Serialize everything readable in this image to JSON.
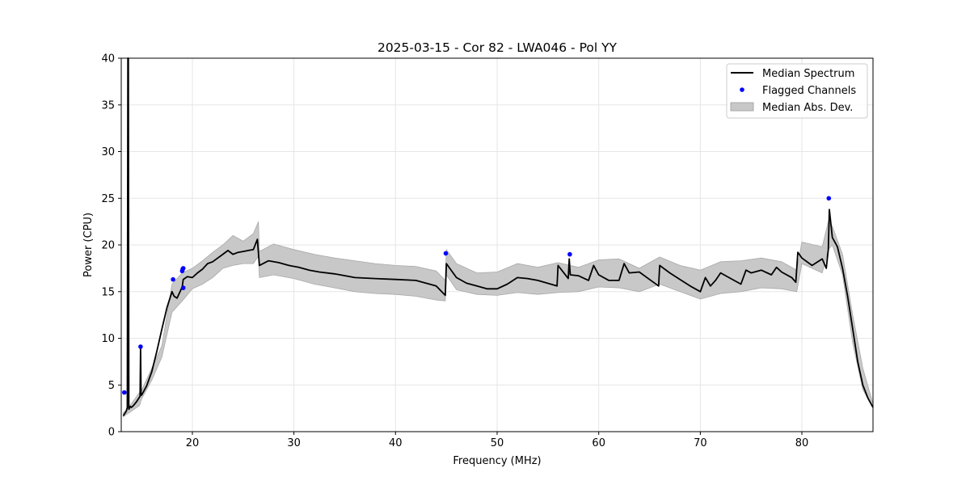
{
  "chart_data": {
    "type": "line",
    "title": "2025-03-15 - Cor 82 - LWA046 - Pol YY",
    "xlabel": "Frequency (MHz)",
    "ylabel": "Power (CPU)",
    "xlim": [
      13,
      87
    ],
    "ylim": [
      0,
      40
    ],
    "xticks": [
      20,
      30,
      40,
      50,
      60,
      70,
      80
    ],
    "yticks": [
      0,
      5,
      10,
      15,
      20,
      25,
      30,
      35,
      40
    ],
    "grid": true,
    "legend_position": "top-right",
    "legend": [
      "Median Spectrum",
      "Flagged Channels",
      "Median Abs. Dev."
    ],
    "colors": {
      "median": "#000000",
      "flagged": "#0000ff",
      "band_fill": "#c8c8c8",
      "band_edge": "#a8a8a8",
      "grid": "#e6e6e6"
    },
    "series": [
      {
        "name": "Median Spectrum",
        "x": [
          13.2,
          13.5,
          13.6,
          13.65,
          13.7,
          13.75,
          13.9,
          14.0,
          14.2,
          14.5,
          14.85,
          14.9,
          14.95,
          15.0,
          15.5,
          16.0,
          16.5,
          17.0,
          17.5,
          18.0,
          18.2,
          18.5,
          19.0,
          19.1,
          19.5,
          20.0,
          20.5,
          21.0,
          21.5,
          22.0,
          22.5,
          23.0,
          23.5,
          24.0,
          24.5,
          25.0,
          25.5,
          26.0,
          26.4,
          26.6,
          27.5,
          28.5,
          29.5,
          30.5,
          31.5,
          32.5,
          34.0,
          36.0,
          38.0,
          40.0,
          42.0,
          44.0,
          44.9,
          45.0,
          46.0,
          47.0,
          48.0,
          49.0,
          50.0,
          51.0,
          52.0,
          53.0,
          54.0,
          55.9,
          56.0,
          57.0,
          57.1,
          57.2,
          58.0,
          59.0,
          59.5,
          60.0,
          61.0,
          62.0,
          62.5,
          63.0,
          64.0,
          65.0,
          65.9,
          66.0,
          67.0,
          68.0,
          69.0,
          70.0,
          70.5,
          71.0,
          71.5,
          72.0,
          73.0,
          74.0,
          74.5,
          75.0,
          76.0,
          77.0,
          77.5,
          78.0,
          79.0,
          79.4,
          79.6,
          80.0,
          81.0,
          82.0,
          82.4,
          82.6,
          82.7,
          83.0,
          83.5,
          84.0,
          84.5,
          85.0,
          85.5,
          86.0,
          86.5,
          87.0
        ],
        "y": [
          1.7,
          2.2,
          2.6,
          40,
          40,
          2.4,
          2.7,
          2.6,
          2.8,
          3.2,
          3.8,
          9.0,
          4.0,
          3.9,
          4.9,
          6.4,
          8.6,
          11.0,
          13.3,
          15.0,
          14.5,
          14.3,
          15.5,
          16.3,
          16.6,
          16.5,
          17.0,
          17.4,
          18.0,
          18.2,
          18.6,
          19.0,
          19.4,
          19.0,
          19.2,
          19.3,
          19.4,
          19.5,
          20.6,
          17.8,
          18.3,
          18.1,
          17.8,
          17.6,
          17.3,
          17.1,
          16.9,
          16.5,
          16.4,
          16.3,
          16.2,
          15.6,
          14.6,
          18.0,
          16.5,
          15.9,
          15.6,
          15.3,
          15.3,
          15.8,
          16.5,
          16.4,
          16.2,
          15.6,
          17.8,
          16.4,
          18.5,
          16.8,
          16.7,
          16.2,
          17.8,
          16.8,
          16.2,
          16.2,
          18.0,
          17.0,
          17.1,
          16.3,
          15.6,
          17.8,
          17.0,
          16.3,
          15.6,
          15.0,
          16.5,
          15.6,
          16.2,
          17.0,
          16.4,
          15.8,
          17.3,
          17.0,
          17.3,
          16.8,
          17.6,
          17.1,
          16.5,
          16.0,
          19.2,
          18.6,
          17.8,
          18.5,
          17.5,
          19.5,
          23.8,
          20.8,
          19.8,
          17.5,
          14.5,
          11.0,
          7.5,
          5.0,
          3.6,
          2.6
        ]
      },
      {
        "name": "Median Abs. Dev.",
        "x": [
          13.2,
          14.0,
          14.8,
          15.0,
          16.0,
          17.0,
          18.0,
          19.0,
          20.0,
          21.0,
          22.0,
          23.0,
          24.0,
          25.0,
          26.0,
          26.5,
          26.6,
          28.0,
          30.0,
          32.0,
          34.0,
          36.0,
          38.0,
          40.0,
          42.0,
          44.0,
          44.9,
          45.0,
          46.0,
          48.0,
          50.0,
          52.0,
          54.0,
          56.0,
          58.0,
          60.0,
          62.0,
          64.0,
          66.0,
          68.0,
          70.0,
          72.0,
          74.0,
          76.0,
          78.0,
          79.5,
          80.0,
          82.0,
          82.6,
          83.0,
          84.0,
          85.0,
          86.0,
          87.0
        ],
        "upper": [
          2.0,
          3.0,
          4.2,
          4.4,
          6.8,
          9.2,
          15.8,
          17.0,
          17.5,
          18.3,
          19.2,
          20.0,
          21.0,
          20.4,
          21.2,
          22.5,
          19.3,
          20.1,
          19.5,
          19.0,
          18.6,
          18.3,
          18.0,
          17.8,
          17.7,
          17.2,
          16.2,
          19.5,
          18.0,
          17.0,
          17.1,
          18.0,
          17.6,
          18.1,
          17.6,
          18.4,
          18.5,
          17.5,
          18.7,
          17.8,
          17.3,
          18.2,
          18.3,
          18.6,
          18.2,
          17.3,
          20.3,
          19.8,
          22.5,
          22.0,
          19.0,
          12.5,
          6.8,
          3.0
        ],
        "lower": [
          1.6,
          2.2,
          2.8,
          3.5,
          5.5,
          8.0,
          12.8,
          14.0,
          15.3,
          15.8,
          16.5,
          17.5,
          17.8,
          18.0,
          18.0,
          18.8,
          16.5,
          16.8,
          16.4,
          15.8,
          15.4,
          15.0,
          14.8,
          14.7,
          14.5,
          14.1,
          14.0,
          16.8,
          15.2,
          14.7,
          14.6,
          14.9,
          14.7,
          14.9,
          15.0,
          15.5,
          15.4,
          15.0,
          15.8,
          15.0,
          14.2,
          14.8,
          15.0,
          15.4,
          15.3,
          15.0,
          18.0,
          17.0,
          19.5,
          20.0,
          16.8,
          9.5,
          4.5,
          2.5
        ]
      },
      {
        "name": "Flagged Channels",
        "x": [
          13.3,
          14.9,
          18.1,
          19.0,
          19.05,
          19.1,
          19.1,
          44.95,
          57.15,
          82.65
        ],
        "y": [
          4.2,
          9.1,
          16.3,
          17.2,
          17.4,
          17.5,
          15.4,
          19.1,
          19.0,
          25.0
        ]
      }
    ]
  }
}
